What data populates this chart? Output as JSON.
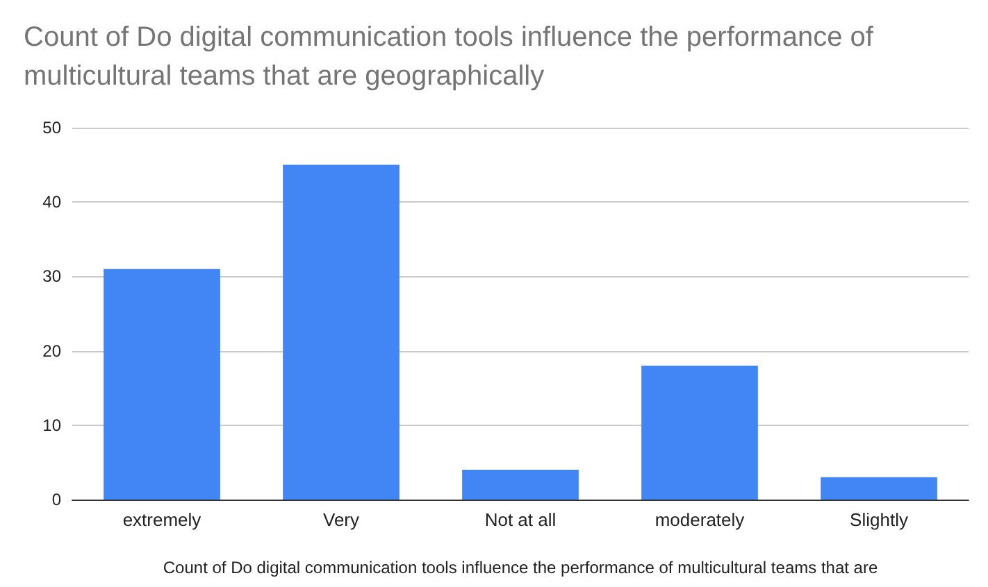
{
  "chart_data": {
    "type": "bar",
    "title": "Count of Do digital communication tools influence the performance of multicultural teams that are geographically",
    "xlabel": "Count of Do digital communication tools influence the performance of multicultural teams that are",
    "categories": [
      "extremely",
      "Very",
      "Not at all",
      "moderately",
      "Slightly"
    ],
    "values": [
      31,
      45,
      4,
      18,
      3
    ],
    "color": "#4285f4",
    "ylim": [
      0,
      50
    ],
    "yticks": [
      0,
      10,
      20,
      30,
      40,
      50
    ],
    "grid": "y"
  }
}
